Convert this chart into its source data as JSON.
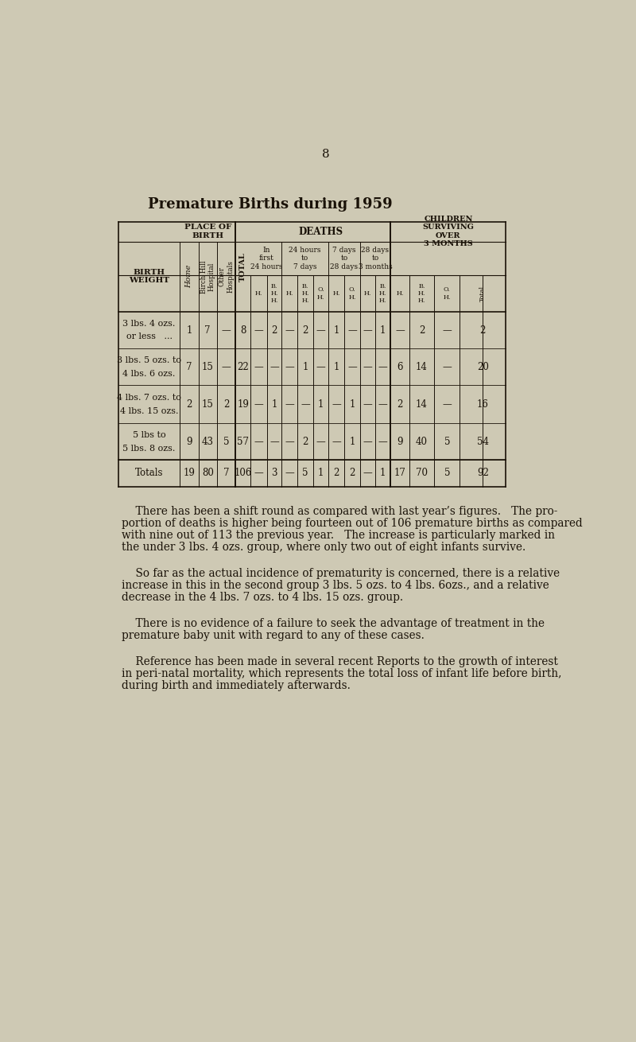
{
  "page_number": "8",
  "title": "Premature Births during 1959",
  "bg_color": "#cec9b4",
  "text_color": "#1a1208",
  "row_data": [
    {
      "weight_line1": "3 lbs. 4 ozs.",
      "weight_line2": "or less   ...",
      "cols": [
        "1",
        "7",
        "—",
        "8",
        "—",
        "2",
        "—",
        "2",
        "—",
        "1",
        "—",
        "—",
        "1",
        "—",
        "2",
        "—",
        "2"
      ]
    },
    {
      "weight_line1": "3 lbs. 5 ozs. to",
      "weight_line2": "4 lbs. 6 ozs.",
      "cols": [
        "7",
        "15",
        "—",
        "22",
        "—",
        "—",
        "—",
        "1",
        "—",
        "1",
        "—",
        "—",
        "—",
        "6",
        "14",
        "—",
        "20"
      ]
    },
    {
      "weight_line1": "4 lbs. 7 ozs. to",
      "weight_line2": "4 lbs. 15 ozs.",
      "cols": [
        "2",
        "15",
        "2",
        "19",
        "—",
        "1",
        "—",
        "—",
        "1",
        "—",
        "1",
        "—",
        "—",
        "2",
        "14",
        "—",
        "16"
      ]
    },
    {
      "weight_line1": "5 lbs to",
      "weight_line2": "5 lbs. 8 ozs.",
      "cols": [
        "9",
        "43",
        "5",
        "57",
        "—",
        "—",
        "—",
        "2",
        "—",
        "—",
        "1",
        "—",
        "—",
        "9",
        "40",
        "5",
        "54"
      ]
    },
    {
      "weight_line1": "Totals",
      "weight_line2": "",
      "cols": [
        "19",
        "80",
        "7",
        "106",
        "—",
        "3",
        "—",
        "5",
        "1",
        "2",
        "2",
        "—",
        "1",
        "17",
        "70",
        "5",
        "92"
      ]
    }
  ],
  "paragraphs": [
    "    There has been a shift round as compared with last year’s figures.   The pro-\nportion of deaths is higher being fourteen out of 106 premature births as compared\nwith nine out of 113 the previous year.   The increase is particularly marked in\nthe under 3 lbs. 4 ozs. group, where only two out of eight infants survive.",
    "    So far as the actual incidence of prematurity is concerned, there is a relative\nincrease in this in the second group 3 lbs. 5 ozs. to 4 lbs. 6ozs., and a relative\ndecrease in the 4 lbs. 7 ozs. to 4 lbs. 15 ozs. group.",
    "    There is no evidence of a failure to seek the advantage of treatment in the\npremature baby unit with regard to any of these cases.",
    "    Reference has been made in several recent Reports to the growth of interest\nin peri-natal mortality, which represents the total loss of infant life before birth,\nduring birth and immediately afterwards."
  ]
}
